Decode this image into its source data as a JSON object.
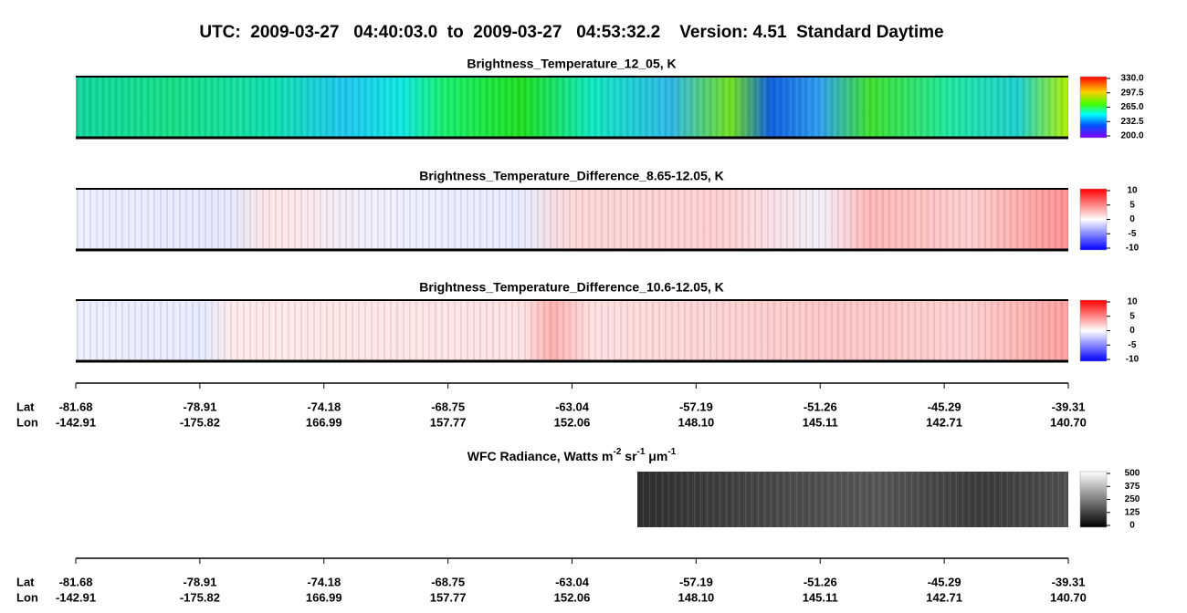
{
  "header": {
    "title": "UTC:  2009-03-27   04:40:03.0  to  2009-03-27   04:53:32.2    Version: 4.51  Standard Daytime"
  },
  "panels": [
    {
      "title": "Brightness_Temperature_12_05, K",
      "colorbar": [
        "330.0",
        "297.5",
        "265.0",
        "232.5",
        "200.0"
      ]
    },
    {
      "title": "Brightness_Temperature_Difference_8.65-12.05, K",
      "colorbar": [
        "10",
        "5",
        "0",
        "-5",
        "-10"
      ]
    },
    {
      "title": "Brightness_Temperature_Difference_10.6-12.05, K",
      "colorbar": [
        "10",
        "5",
        "0",
        "-5",
        "-10"
      ]
    }
  ],
  "wfc": {
    "title_parts": [
      "WFC Radiance, Watts m",
      "-2",
      " sr",
      "-1",
      " μm",
      "-1"
    ],
    "colorbar": [
      "500",
      "375",
      "250",
      "125",
      "0"
    ]
  },
  "axes": [
    {
      "lat_label": "Lat",
      "lon_label": "Lon",
      "lat": [
        "-81.68",
        "-78.91",
        "-74.18",
        "-68.75",
        "-63.04",
        "-57.19",
        "-51.26",
        "-45.29",
        "-39.31"
      ],
      "lon": [
        "-142.91",
        "-175.82",
        "166.99",
        "157.77",
        "152.06",
        "148.10",
        "145.11",
        "142.71",
        "140.70"
      ]
    },
    {
      "lat_label": "Lat",
      "lon_label": "Lon",
      "lat": [
        "-81.68",
        "-78.91",
        "-74.18",
        "-68.75",
        "-63.04",
        "-57.19",
        "-51.26",
        "-45.29",
        "-39.31"
      ],
      "lon": [
        "-142.91",
        "-175.82",
        "166.99",
        "157.77",
        "152.06",
        "148.10",
        "145.11",
        "142.71",
        "140.70"
      ]
    }
  ]
}
